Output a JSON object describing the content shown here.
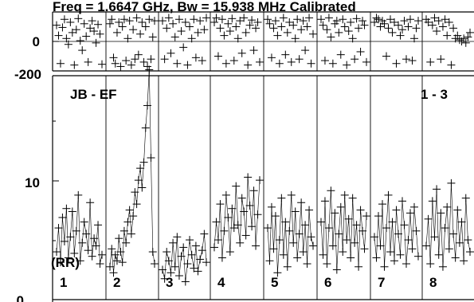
{
  "chart_data": {
    "type": "scatter",
    "header_text": "Freq = 1.6647 GHz, Bw = 15.938 MHz  Calibrated",
    "baseline_label": "JB - EF",
    "pol_label": "(RR)",
    "range_label": "1 - 3",
    "phase_panel": {
      "ylim": [
        -200,
        200
      ],
      "tick_labels": [
        "0",
        "-200"
      ]
    },
    "amp_panel": {
      "ylim": [
        0,
        15
      ],
      "tick_labels": [
        "10",
        "0"
      ]
    },
    "channels": [
      {
        "name": "1",
        "amp": [
          3.2,
          4.8,
          2.5,
          5.5,
          3.9,
          6.1,
          2.8,
          4.2,
          5.9,
          3.1,
          4.6,
          7.0,
          2.6,
          3.8,
          5.2,
          4.4,
          3.3,
          6.5,
          2.9,
          4.1,
          3.6,
          5.0,
          2.4,
          3.0
        ],
        "phase": [
          110,
          40,
          -150,
          95,
          150,
          20,
          -20,
          130,
          60,
          -160,
          80,
          155,
          5,
          -60,
          120,
          35,
          -140,
          90,
          140,
          70,
          -10,
          115,
          50,
          -155
        ]
      },
      {
        "name": "2",
        "amp": [
          2.2,
          3.4,
          1.8,
          3.0,
          2.6,
          4.1,
          3.2,
          2.5,
          4.6,
          3.8,
          5.2,
          6.0,
          4.4,
          5.6,
          7.2,
          6.4,
          8.0,
          8.8,
          7.5,
          9.2,
          11.5,
          13.0,
          15.4,
          9.5,
          3.2,
          2.4
        ],
        "phase": [
          120,
          150,
          -110,
          -150,
          60,
          130,
          -170,
          100,
          150,
          -130,
          20,
          140,
          -160,
          80,
          -120,
          160,
          -90,
          50,
          130,
          -140,
          100,
          -170,
          150,
          -120,
          30,
          140
        ]
      },
      {
        "name": "3",
        "amp": [
          2.0,
          1.4,
          3.2,
          2.6,
          1.8,
          3.8,
          2.2,
          4.2,
          1.6,
          2.9,
          3.5,
          1.2,
          2.4,
          4.0,
          3.0,
          2.1,
          3.6,
          1.9,
          2.7,
          3.3,
          4.4,
          2.5
        ],
        "phase": [
          140,
          -120,
          90,
          160,
          -80,
          120,
          30,
          -150,
          150,
          70,
          -40,
          130,
          -160,
          100,
          20,
          150,
          -110,
          60,
          140,
          -130,
          80,
          160
        ]
      },
      {
        "name": "4",
        "amp": [
          3.5,
          5.2,
          4.0,
          6.4,
          2.8,
          4.6,
          7.0,
          5.5,
          3.2,
          6.1,
          4.8,
          7.6,
          5.0,
          3.8,
          6.8,
          5.9,
          4.3,
          8.2,
          6.3,
          4.9,
          7.3,
          3.6,
          5.7,
          8.0
        ],
        "phase": [
          130,
          160,
          -100,
          90,
          150,
          40,
          -150,
          120,
          70,
          155,
          -130,
          100,
          20,
          140,
          -80,
          160,
          60,
          -160,
          110,
          145,
          -60,
          90,
          130,
          -140
        ]
      },
      {
        "name": "5",
        "amp": [
          4.8,
          2.6,
          6.2,
          3.4,
          5.6,
          1.8,
          4.0,
          6.8,
          3.0,
          5.2,
          2.2,
          4.6,
          7.0,
          3.8,
          5.9,
          2.8,
          4.4,
          6.5,
          3.2,
          5.0,
          2.4,
          6.0,
          4.2,
          3.6
        ],
        "phase": [
          150,
          120,
          -110,
          90,
          140,
          40,
          -150,
          100,
          160,
          -90,
          60,
          130,
          -140,
          110,
          20,
          150,
          -120,
          80,
          140,
          -60,
          100,
          160,
          -150,
          50
        ]
      },
      {
        "name": "6",
        "amp": [
          5.2,
          3.0,
          6.6,
          2.4,
          4.8,
          7.3,
          3.6,
          5.8,
          2.0,
          4.4,
          6.2,
          3.2,
          7.0,
          4.0,
          5.4,
          2.8,
          6.8,
          3.8,
          5.0,
          2.2,
          6.0,
          4.6,
          3.4,
          5.6
        ],
        "phase": [
          150,
          110,
          -130,
          80,
          160,
          30,
          -150,
          120,
          140,
          60,
          -90,
          150,
          100,
          -160,
          70,
          130,
          20,
          -120,
          155,
          90,
          -70,
          140,
          110,
          -140
        ]
      },
      {
        "name": "7",
        "amp": [
          4.2,
          2.8,
          5.6,
          3.6,
          6.4,
          2.2,
          4.8,
          7.0,
          3.2,
          5.2,
          2.6,
          6.0,
          4.4,
          3.0,
          6.6,
          5.0,
          2.4,
          4.0,
          5.8,
          3.4,
          6.2,
          4.6,
          2.9
        ],
        "phase": [
          130,
          160,
          150,
          100,
          140,
          120,
          -100,
          90,
          150,
          60,
          130,
          -150,
          110,
          40,
          80,
          140,
          -120,
          100,
          150,
          -130,
          20,
          90,
          140
        ]
      },
      {
        "name": "8",
        "amp": [
          3.6,
          5.4,
          2.4,
          6.6,
          4.2,
          7.4,
          3.0,
          5.8,
          2.2,
          4.8,
          6.2,
          3.4,
          7.8,
          4.4,
          2.8,
          6.0,
          3.8,
          5.2,
          2.6,
          6.8,
          4.0,
          3.2
        ],
        "phase": [
          150,
          130,
          -140,
          110,
          160,
          70,
          140,
          -120,
          100,
          150,
          40,
          130,
          -160,
          90,
          20,
          40,
          10,
          0,
          20,
          -10,
          30,
          60
        ]
      }
    ]
  }
}
